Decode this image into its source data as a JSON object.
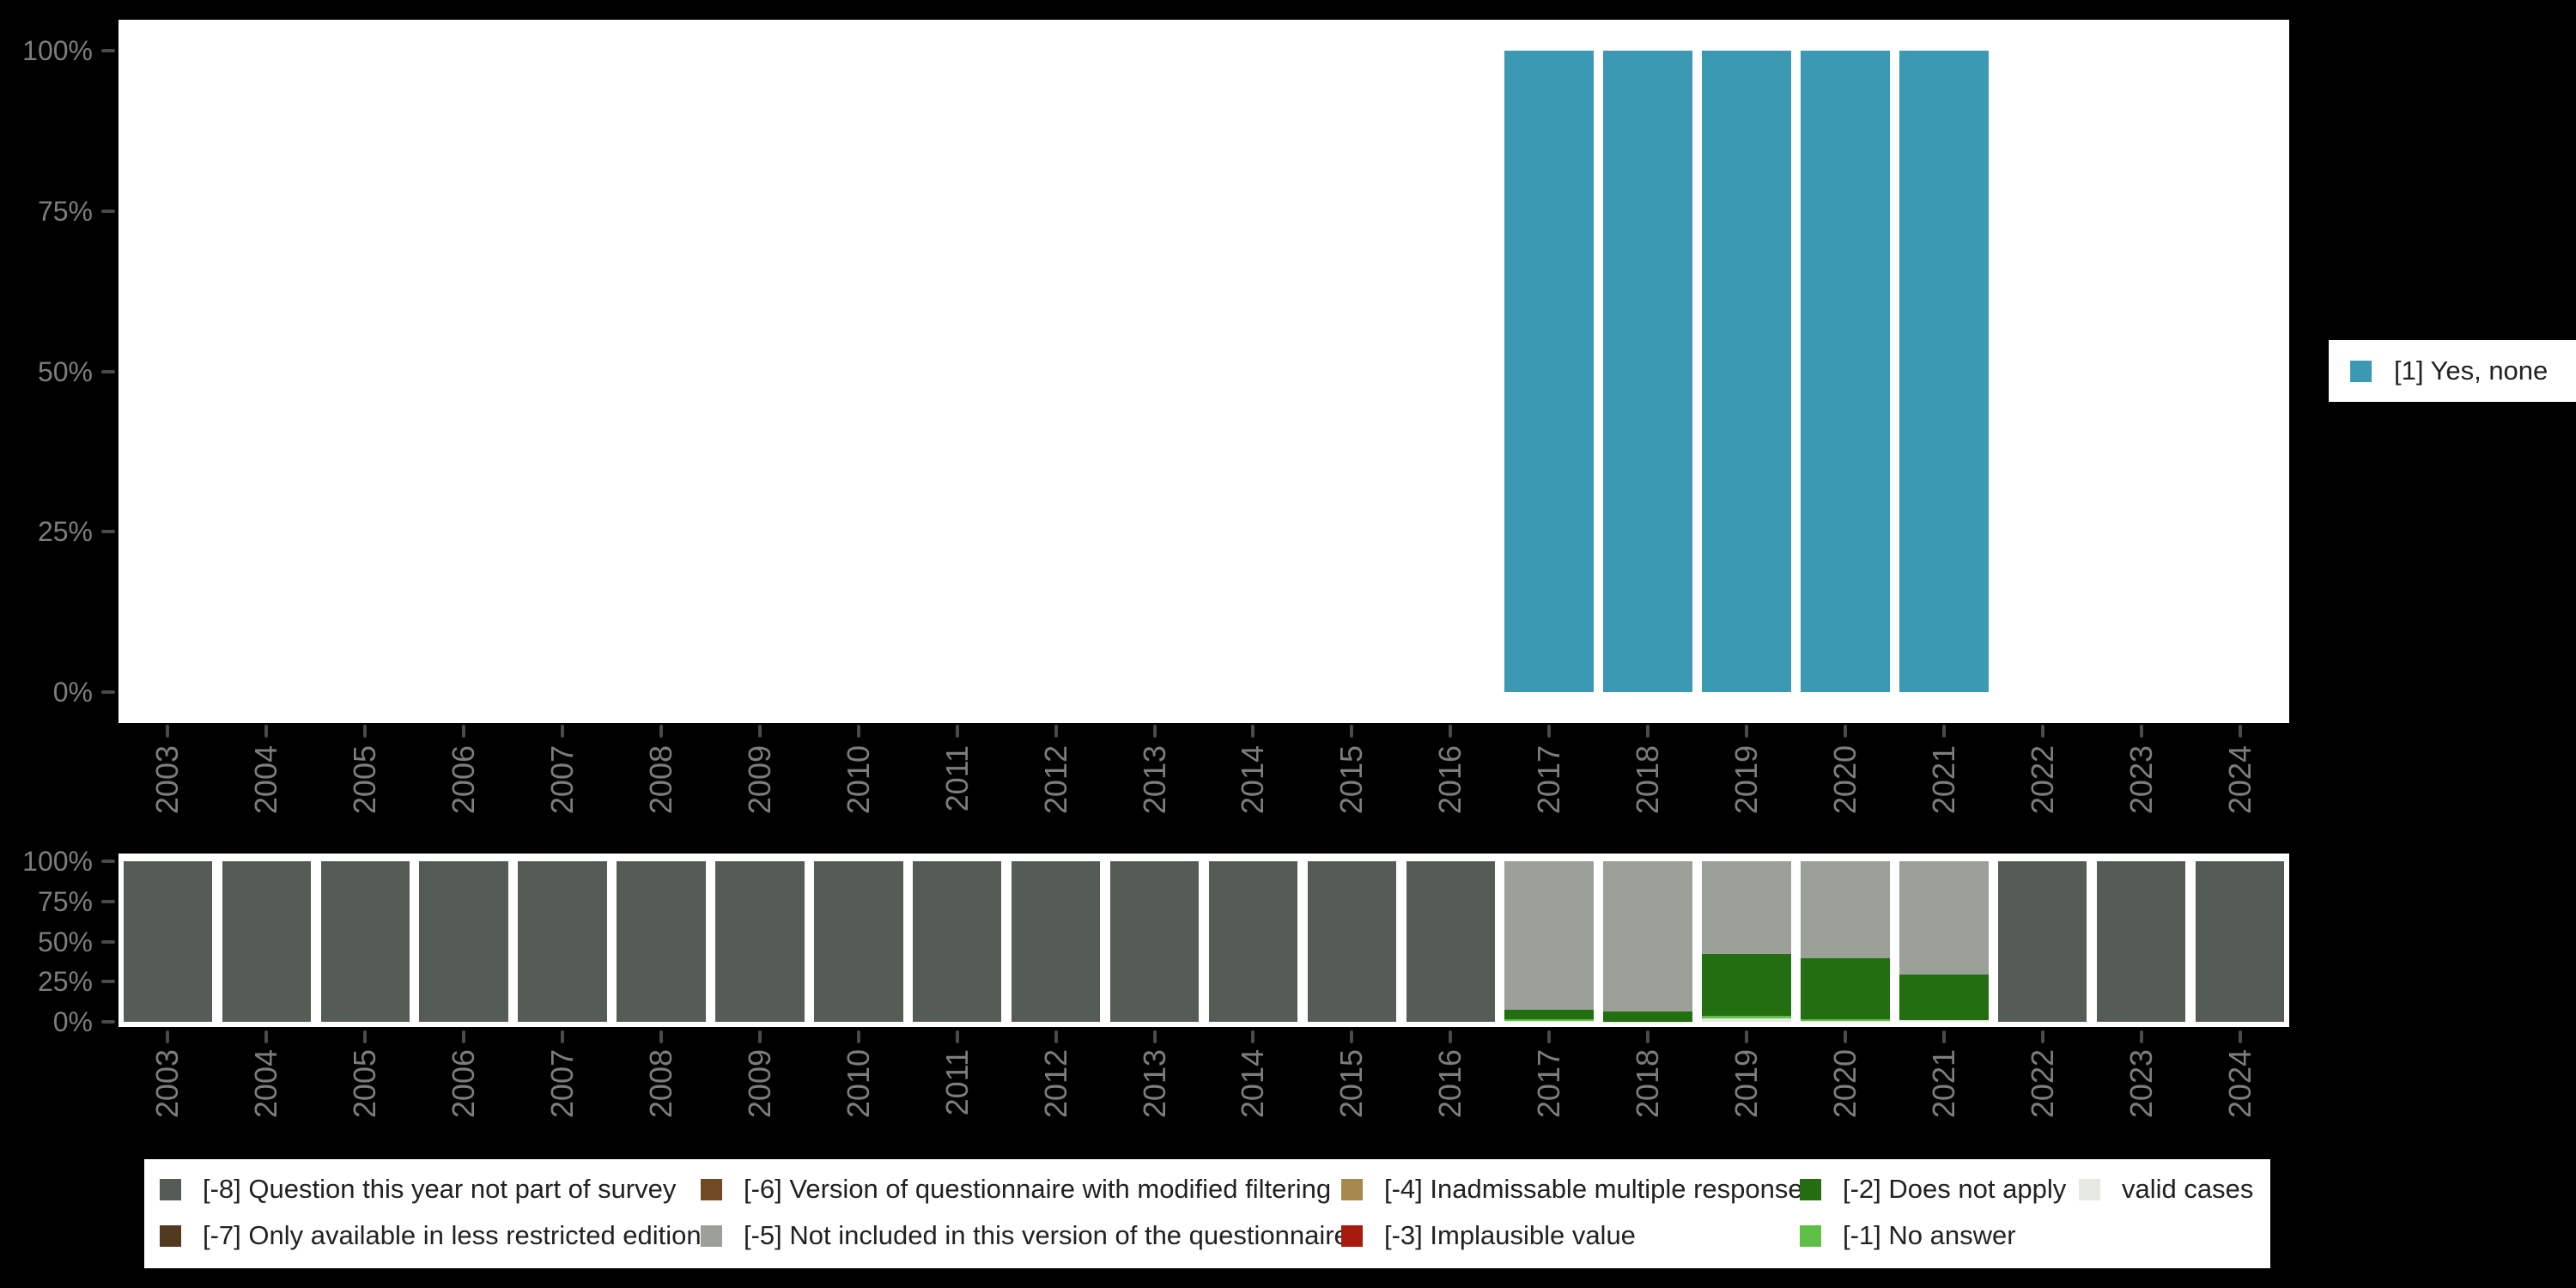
{
  "page": {
    "background": "#000000",
    "panel_background": "#ffffff"
  },
  "axis": {
    "text_color": "#7d7d7d",
    "tick_color": "#4a4a4a",
    "y_tick_values": [
      100,
      75,
      50,
      25,
      0
    ],
    "y_tick_labels": [
      "100%",
      "75%",
      "50%",
      "25%",
      "0%"
    ]
  },
  "years": [
    "2003",
    "2004",
    "2005",
    "2006",
    "2007",
    "2008",
    "2009",
    "2010",
    "2011",
    "2012",
    "2013",
    "2014",
    "2015",
    "2016",
    "2017",
    "2018",
    "2019",
    "2020",
    "2021",
    "2022",
    "2023",
    "2024"
  ],
  "legend_right": {
    "label": "[1] Yes, none",
    "color": "#3c99b3"
  },
  "categories": {
    "valid": {
      "label": "valid cases",
      "color": "#e6e9e2"
    },
    "m1": {
      "label": "[-1] No answer",
      "color": "#5ec145"
    },
    "m2": {
      "label": "[-2] Does not apply",
      "color": "#226e10"
    },
    "m3": {
      "label": "[-3] Implausible value",
      "color": "#a61b0e"
    },
    "m4": {
      "label": "[-4] Inadmissable multiple response",
      "color": "#a5894f"
    },
    "m5": {
      "label": "[-5] Not included in this version of the questionnaire",
      "color": "#9ba098"
    },
    "m6": {
      "label": "[-6] Version of questionnaire with modified filtering",
      "color": "#6f4a22"
    },
    "m7": {
      "label": "[-7] Only available in less restricted edition",
      "color": "#513a20"
    },
    "m8": {
      "label": "[-8] Question this year not part of survey",
      "color": "#555c55"
    }
  },
  "legend_bottom": {
    "columns": [
      [
        "m8",
        "m7"
      ],
      [
        "m6",
        "m5"
      ],
      [
        "m4",
        "m3"
      ],
      [
        "m2",
        "m1"
      ],
      [
        "valid"
      ]
    ]
  },
  "chart_data": [
    {
      "type": "bar",
      "title": "",
      "xlabel": "",
      "ylabel": "",
      "ylim": [
        0,
        100
      ],
      "y_tick_labels": [
        "100%",
        "75%",
        "50%",
        "25%",
        "0%"
      ],
      "grid": false,
      "legend_position": "right",
      "categories": [
        "2003",
        "2004",
        "2005",
        "2006",
        "2007",
        "2008",
        "2009",
        "2010",
        "2011",
        "2012",
        "2013",
        "2014",
        "2015",
        "2016",
        "2017",
        "2018",
        "2019",
        "2020",
        "2021",
        "2022",
        "2023",
        "2024"
      ],
      "series": [
        {
          "name": "[1] Yes, none",
          "color": "#3c99b3",
          "values": [
            null,
            null,
            null,
            null,
            null,
            null,
            null,
            null,
            null,
            null,
            null,
            null,
            null,
            null,
            100,
            100,
            100,
            100,
            100,
            null,
            null,
            null
          ]
        }
      ]
    },
    {
      "type": "bar",
      "subtype": "stacked",
      "title": "",
      "xlabel": "",
      "ylabel": "",
      "ylim": [
        0,
        100
      ],
      "y_tick_labels": [
        "100%",
        "75%",
        "50%",
        "25%",
        "0%"
      ],
      "grid": false,
      "legend_position": "bottom",
      "categories": [
        "2003",
        "2004",
        "2005",
        "2006",
        "2007",
        "2008",
        "2009",
        "2010",
        "2011",
        "2012",
        "2013",
        "2014",
        "2015",
        "2016",
        "2017",
        "2018",
        "2019",
        "2020",
        "2021",
        "2022",
        "2023",
        "2024"
      ],
      "stack_order_bottom_to_top": [
        "valid",
        "m1",
        "m2",
        "m3",
        "m4",
        "m5",
        "m6",
        "m7",
        "m8"
      ],
      "series": [
        {
          "key": "valid",
          "name": "valid cases",
          "values": [
            0,
            0,
            0,
            0,
            0,
            0,
            0,
            0,
            0,
            0,
            0,
            0,
            0,
            0,
            0.5,
            0.2,
            2.4,
            0.3,
            0.9,
            0,
            0,
            0
          ]
        },
        {
          "key": "m1",
          "name": "[-1] No answer",
          "values": [
            0,
            0,
            0,
            0,
            0,
            0,
            0,
            0,
            0,
            0,
            0,
            0,
            0,
            0,
            1.2,
            0,
            1.3,
            1.1,
            0,
            0,
            0,
            0
          ]
        },
        {
          "key": "m2",
          "name": "[-2] Does not apply",
          "values": [
            0,
            0,
            0,
            0,
            0,
            0,
            0,
            0,
            0,
            0,
            0,
            0,
            0,
            0,
            5.8,
            6.3,
            38.5,
            38.2,
            28.5,
            0,
            0,
            0
          ]
        },
        {
          "key": "m3",
          "name": "[-3] Implausible value",
          "values": [
            0,
            0,
            0,
            0,
            0,
            0,
            0,
            0,
            0,
            0,
            0,
            0,
            0,
            0,
            0,
            0,
            0,
            0,
            0,
            0,
            0,
            0
          ]
        },
        {
          "key": "m4",
          "name": "[-4] Inadmissable multiple response",
          "values": [
            0,
            0,
            0,
            0,
            0,
            0,
            0,
            0,
            0,
            0,
            0,
            0,
            0,
            0,
            0,
            0,
            0,
            0,
            0,
            0,
            0,
            0
          ]
        },
        {
          "key": "m5",
          "name": "[-5] Not included in this version of the questionnaire",
          "values": [
            0,
            0,
            0,
            0,
            0,
            0,
            0,
            0,
            0,
            0,
            0,
            0,
            0,
            0,
            92.5,
            93.5,
            57.8,
            60.4,
            70.6,
            0,
            0,
            0
          ]
        },
        {
          "key": "m6",
          "name": "[-6] Version of questionnaire with modified filtering",
          "values": [
            0,
            0,
            0,
            0,
            0,
            0,
            0,
            0,
            0,
            0,
            0,
            0,
            0,
            0,
            0,
            0,
            0,
            0,
            0,
            0,
            0,
            0
          ]
        },
        {
          "key": "m7",
          "name": "[-7] Only available in less restricted edition",
          "values": [
            0,
            0,
            0,
            0,
            0,
            0,
            0,
            0,
            0,
            0,
            0,
            0,
            0,
            0,
            0,
            0,
            0,
            0,
            0,
            0,
            0,
            0
          ]
        },
        {
          "key": "m8",
          "name": "[-8] Question this year not part of survey",
          "values": [
            100,
            100,
            100,
            100,
            100,
            100,
            100,
            100,
            100,
            100,
            100,
            100,
            100,
            100,
            0,
            0,
            0,
            0,
            0,
            100,
            100,
            100
          ]
        }
      ]
    }
  ]
}
